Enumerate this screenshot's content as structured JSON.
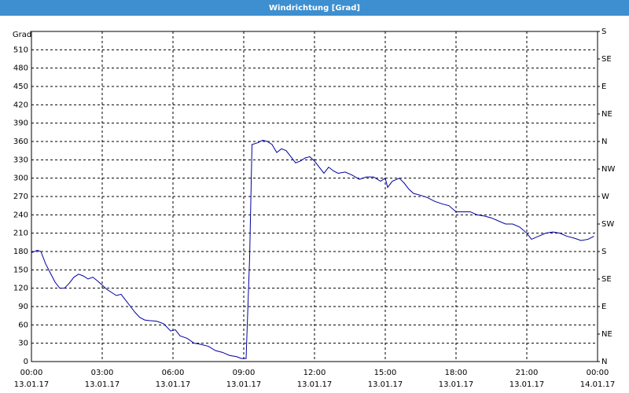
{
  "chart_data": {
    "type": "line",
    "title": "Windrichtung [Grad]",
    "y_label": "Grad",
    "x": [
      0,
      0.25,
      0.4,
      0.6,
      0.8,
      1.0,
      1.2,
      1.4,
      1.6,
      1.8,
      2.0,
      2.2,
      2.4,
      2.6,
      2.8,
      3.0,
      3.2,
      3.4,
      3.6,
      3.8,
      4.0,
      4.2,
      4.4,
      4.6,
      4.8,
      5.0,
      5.3,
      5.6,
      5.9,
      6.1,
      6.3,
      6.6,
      6.9,
      7.2,
      7.5,
      7.8,
      8.1,
      8.4,
      8.7,
      8.9,
      9.1,
      9.25,
      9.35,
      9.6,
      9.8,
      10.0,
      10.2,
      10.4,
      10.6,
      10.8,
      11.0,
      11.2,
      11.4,
      11.6,
      11.8,
      12.0,
      12.2,
      12.4,
      12.6,
      12.8,
      13.0,
      13.3,
      13.6,
      13.9,
      14.2,
      14.5,
      14.8,
      15.0,
      15.1,
      15.3,
      15.6,
      15.8,
      16.0,
      16.2,
      16.5,
      16.8,
      17.1,
      17.4,
      17.7,
      18.0,
      18.3,
      18.6,
      18.9,
      19.2,
      19.5,
      19.8,
      20.1,
      20.4,
      20.7,
      21.0,
      21.2,
      21.5,
      21.8,
      22.1,
      22.4,
      22.7,
      23.0,
      23.3,
      23.6,
      23.85
    ],
    "series": [
      {
        "name": "Windrichtung",
        "color": "#0000a0",
        "values": [
          178,
          182,
          180,
          160,
          145,
          130,
          120,
          120,
          128,
          138,
          143,
          140,
          135,
          138,
          132,
          125,
          118,
          113,
          108,
          110,
          100,
          90,
          80,
          72,
          68,
          67,
          66,
          62,
          50,
          52,
          42,
          38,
          30,
          28,
          25,
          18,
          15,
          10,
          8,
          5,
          5,
          170,
          355,
          358,
          362,
          360,
          355,
          342,
          348,
          345,
          335,
          325,
          328,
          333,
          335,
          328,
          318,
          308,
          318,
          312,
          308,
          310,
          305,
          298,
          302,
          302,
          295,
          300,
          285,
          295,
          300,
          292,
          282,
          275,
          272,
          268,
          262,
          258,
          255,
          245,
          245,
          245,
          240,
          238,
          235,
          230,
          225,
          225,
          220,
          210,
          200,
          205,
          210,
          212,
          210,
          205,
          202,
          198,
          200,
          205
        ]
      }
    ],
    "xlim": [
      0,
      24
    ],
    "xticks": [
      {
        "value": 0,
        "label": "00:00"
      },
      {
        "value": 3,
        "label": "03:00"
      },
      {
        "value": 6,
        "label": "06:00"
      },
      {
        "value": 9,
        "label": "09:00"
      },
      {
        "value": 12,
        "label": "12:00"
      },
      {
        "value": 15,
        "label": "15:00"
      },
      {
        "value": 18,
        "label": "18:00"
      },
      {
        "value": 21,
        "label": "21:00"
      },
      {
        "value": 24,
        "label": "00:00"
      }
    ],
    "xtick_dates": [
      "13.01.17",
      "13.01.17",
      "13.01.17",
      "13.01.17",
      "13.01.17",
      "13.01.17",
      "13.01.17",
      "13.01.17",
      "14.01.17"
    ],
    "ylim": [
      0,
      540
    ],
    "yticks": [
      0,
      30,
      60,
      90,
      120,
      150,
      180,
      210,
      240,
      270,
      300,
      330,
      360,
      390,
      420,
      450,
      480,
      510
    ],
    "y2lim": [
      0,
      540
    ],
    "y2ticks": [
      {
        "value": 0,
        "label": "N"
      },
      {
        "value": 45,
        "label": "NE"
      },
      {
        "value": 90,
        "label": "E"
      },
      {
        "value": 135,
        "label": "SE"
      },
      {
        "value": 180,
        "label": "S"
      },
      {
        "value": 225,
        "label": "SW"
      },
      {
        "value": 270,
        "label": "W"
      },
      {
        "value": 315,
        "label": "NW"
      },
      {
        "value": 360,
        "label": "N"
      },
      {
        "value": 405,
        "label": "NE"
      },
      {
        "value": 450,
        "label": "E"
      },
      {
        "value": 495,
        "label": "SE"
      },
      {
        "value": 540,
        "label": "S"
      }
    ],
    "grid": true
  }
}
